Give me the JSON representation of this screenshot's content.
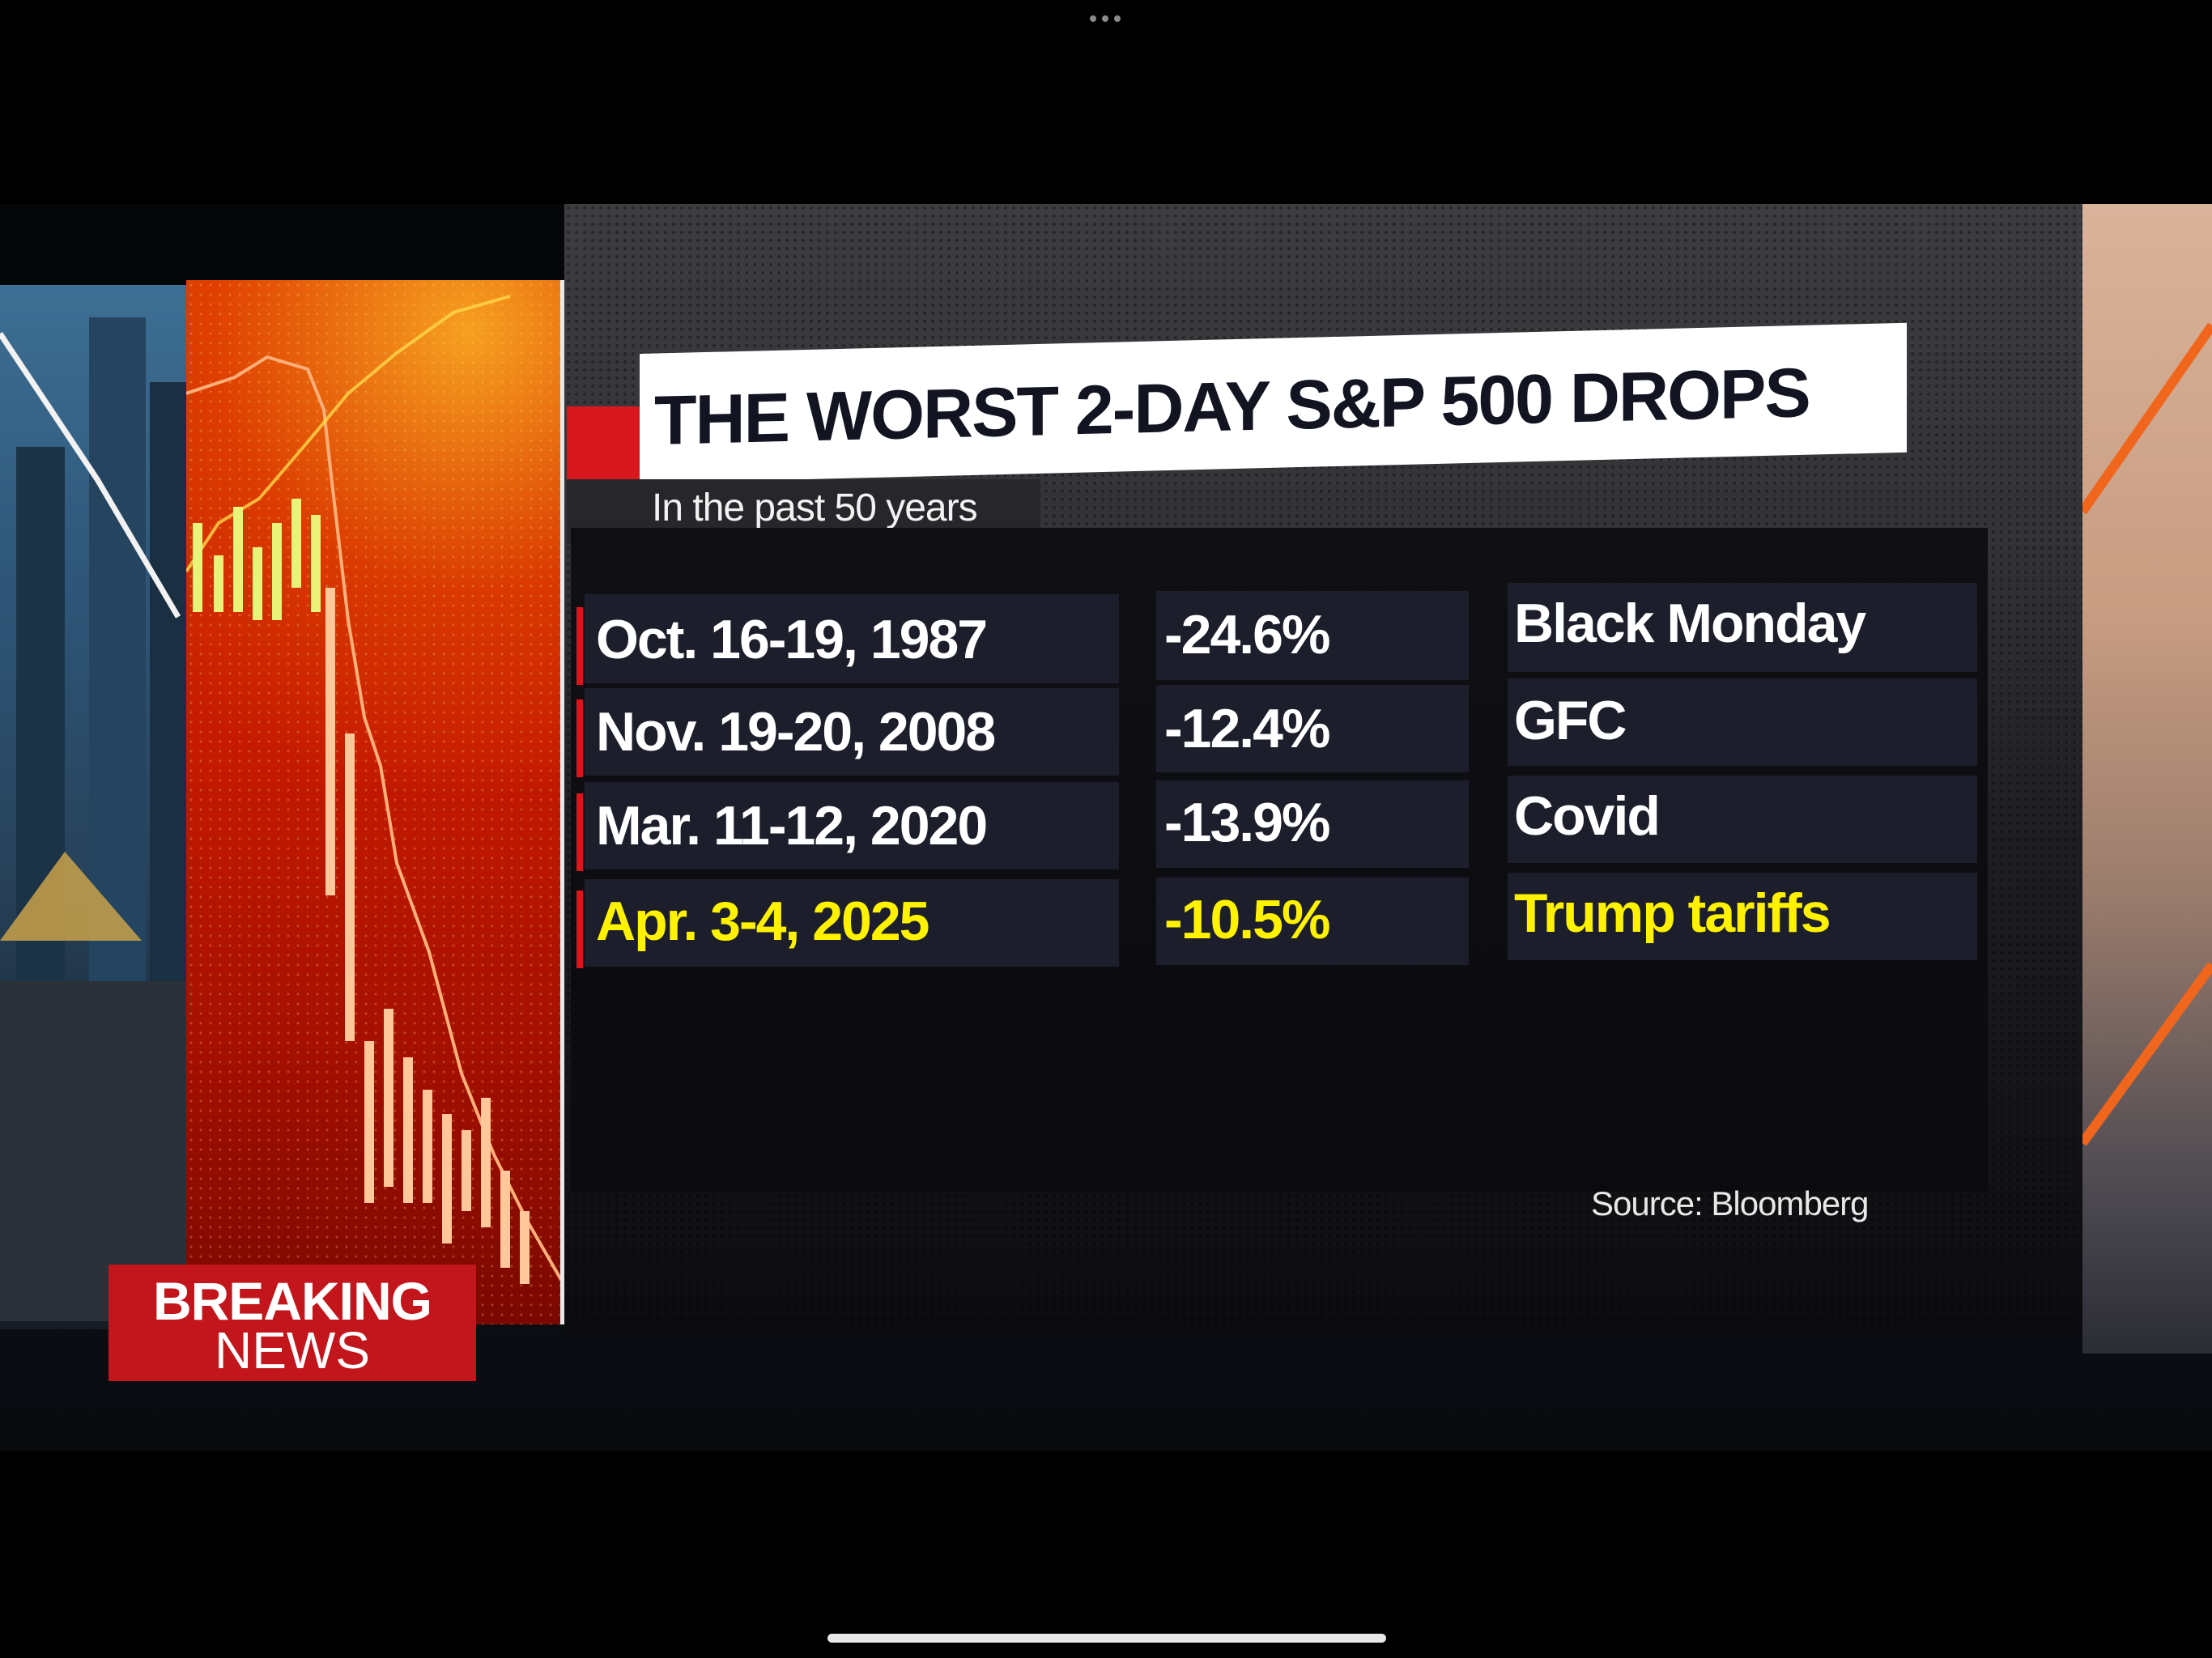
{
  "graphic": {
    "title": "THE WORST 2-DAY S&P 500 DROPS",
    "subtitle": "In the past 50 years",
    "rows": [
      {
        "dates": "Oct. 16-19, 1987",
        "change": "-24.6%",
        "event": "Black Monday",
        "highlight": false
      },
      {
        "dates": "Nov. 19-20, 2008",
        "change": "-12.4%",
        "event": "GFC",
        "highlight": false
      },
      {
        "dates": "Mar. 11-12, 2020",
        "change": "-13.9%",
        "event": "Covid",
        "highlight": false
      },
      {
        "dates": "Apr. 3-4, 2025",
        "change": "-10.5%",
        "event": "Trump tariffs",
        "highlight": true
      }
    ],
    "source": "Source: Bloomberg"
  },
  "badge": {
    "line1": "BREAKING",
    "line2": "NEWS"
  },
  "colors": {
    "accent_red": "#d7191e",
    "highlight_yellow": "#fff200",
    "cell_bg": "#1c1f2b"
  },
  "icons": [
    "more-dots-icon",
    "home-indicator"
  ]
}
